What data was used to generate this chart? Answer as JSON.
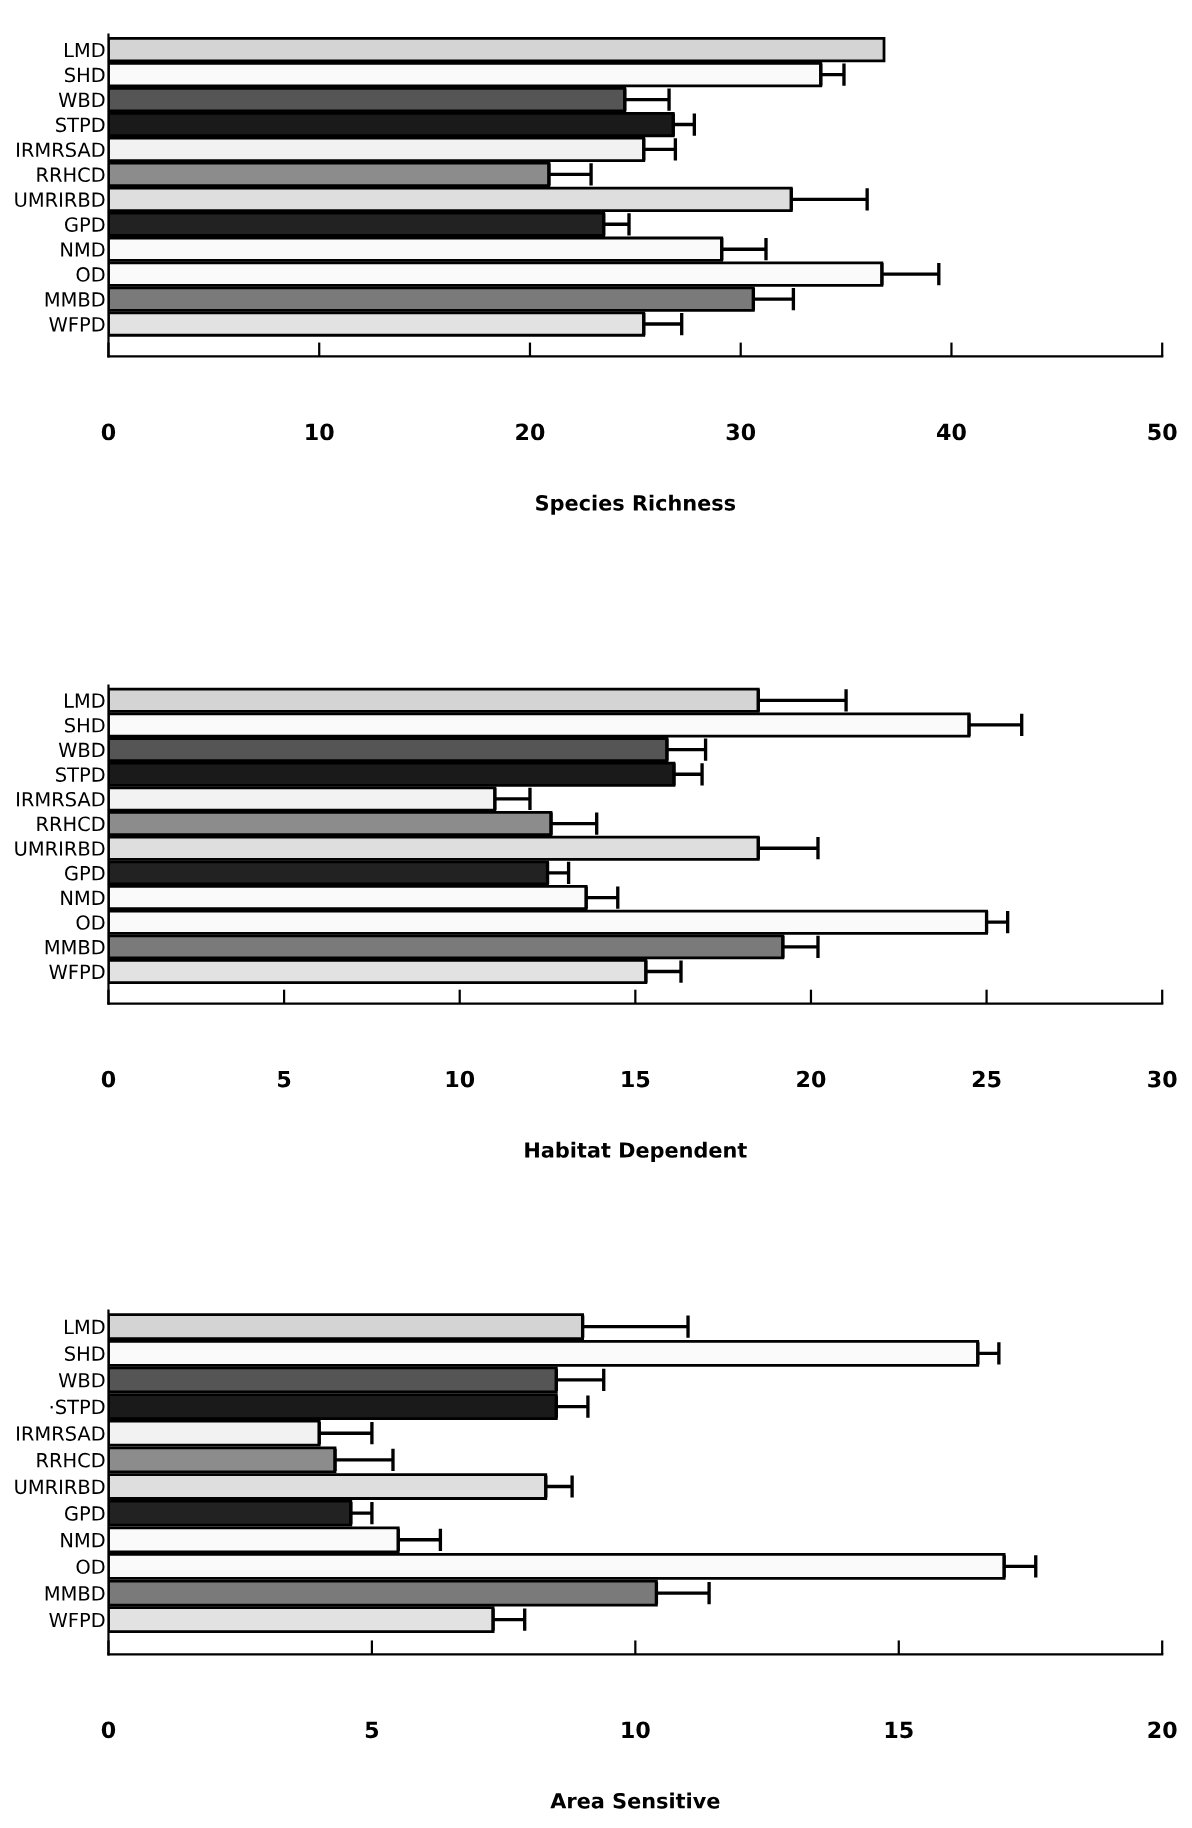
{
  "chart_data": [
    {
      "type": "bar",
      "orientation": "horizontal",
      "xlabel": "Species Richness",
      "categories": [
        "LMD",
        "SHD",
        "WBD",
        "STPD",
        "IRMRSAD",
        "RRHCD",
        "UMRIRBD",
        "GPD",
        "NMD",
        "OD",
        "MMBD",
        "WFPD"
      ],
      "values": [
        36.8,
        33.8,
        24.5,
        26.8,
        25.4,
        20.9,
        32.4,
        23.5,
        29.1,
        36.7,
        30.6,
        25.4
      ],
      "errors": [
        null,
        [
          33.8,
          34.9
        ],
        [
          24.5,
          26.6
        ],
        [
          26.8,
          27.8
        ],
        [
          25.4,
          26.9
        ],
        [
          20.9,
          22.9
        ],
        [
          32.4,
          36.0
        ],
        [
          23.5,
          24.7
        ],
        [
          29.1,
          31.2
        ],
        [
          36.7,
          39.4
        ],
        [
          30.6,
          32.5
        ],
        [
          25.4,
          27.2
        ]
      ],
      "colors": [
        "#d4d4d4",
        "#fafafa",
        "#555555",
        "#1a1a1a",
        "#f2f2f2",
        "#8c8c8c",
        "#dedede",
        "#222222",
        "#fafafa",
        "#fafafa",
        "#7a7a7a",
        "#e2e2e2"
      ],
      "xlim": [
        0,
        50
      ],
      "xticks": [
        0,
        10,
        20,
        30,
        40,
        50
      ],
      "grid": false,
      "legend": false
    },
    {
      "type": "bar",
      "orientation": "horizontal",
      "xlabel": "Habitat Dependent",
      "categories": [
        "LMD",
        "SHD",
        "WBD",
        "STPD",
        "IRMRSAD",
        "RRHCD",
        "UMRIRBD",
        "GPD",
        "NMD",
        "OD",
        "MMBD",
        "WFPD"
      ],
      "values": [
        18.5,
        24.5,
        15.9,
        16.1,
        11.0,
        12.6,
        18.5,
        12.5,
        13.6,
        25.0,
        19.2,
        15.3
      ],
      "errors": [
        [
          18.5,
          21.0
        ],
        [
          24.5,
          26.0
        ],
        [
          15.9,
          17.0
        ],
        [
          16.1,
          16.9
        ],
        [
          11.0,
          12.0
        ],
        [
          12.6,
          13.9
        ],
        [
          18.5,
          20.2
        ],
        [
          12.5,
          13.1
        ],
        [
          13.6,
          14.5
        ],
        [
          25.0,
          25.6
        ],
        [
          19.2,
          20.2
        ],
        [
          15.3,
          16.3
        ]
      ],
      "colors": [
        "#d4d4d4",
        "#fafafa",
        "#555555",
        "#1a1a1a",
        "#f2f2f2",
        "#8c8c8c",
        "#dedede",
        "#222222",
        "#fafafa",
        "#fafafa",
        "#7a7a7a",
        "#e2e2e2"
      ],
      "xlim": [
        0,
        30
      ],
      "xticks": [
        0,
        5,
        10,
        15,
        20,
        25,
        30
      ],
      "grid": false,
      "legend": false
    },
    {
      "type": "bar",
      "orientation": "horizontal",
      "xlabel": "Area Sensitive",
      "categories": [
        "LMD",
        "SHD",
        "WBD",
        "·STPD",
        "IRMRSAD",
        "RRHCD",
        "UMRIRBD",
        "GPD",
        "NMD",
        "OD",
        "MMBD",
        "WFPD"
      ],
      "values": [
        9.0,
        16.5,
        8.5,
        8.5,
        4.0,
        4.3,
        8.3,
        4.6,
        5.5,
        17.0,
        10.4,
        7.3
      ],
      "errors": [
        [
          9.0,
          11.0
        ],
        [
          16.5,
          16.9
        ],
        [
          8.5,
          9.4
        ],
        [
          8.5,
          9.1
        ],
        [
          4.0,
          5.0
        ],
        [
          4.3,
          5.4
        ],
        [
          8.3,
          8.8
        ],
        [
          4.6,
          5.0
        ],
        [
          5.5,
          6.3
        ],
        [
          17.0,
          17.6
        ],
        [
          10.4,
          11.4
        ],
        [
          7.3,
          7.9
        ]
      ],
      "colors": [
        "#d4d4d4",
        "#fafafa",
        "#555555",
        "#1a1a1a",
        "#f2f2f2",
        "#8c8c8c",
        "#dedede",
        "#222222",
        "#fafafa",
        "#fafafa",
        "#7a7a7a",
        "#e2e2e2"
      ],
      "xlim": [
        0,
        20
      ],
      "xticks": [
        0,
        5,
        10,
        15,
        20
      ],
      "grid": false,
      "legend": false
    }
  ]
}
